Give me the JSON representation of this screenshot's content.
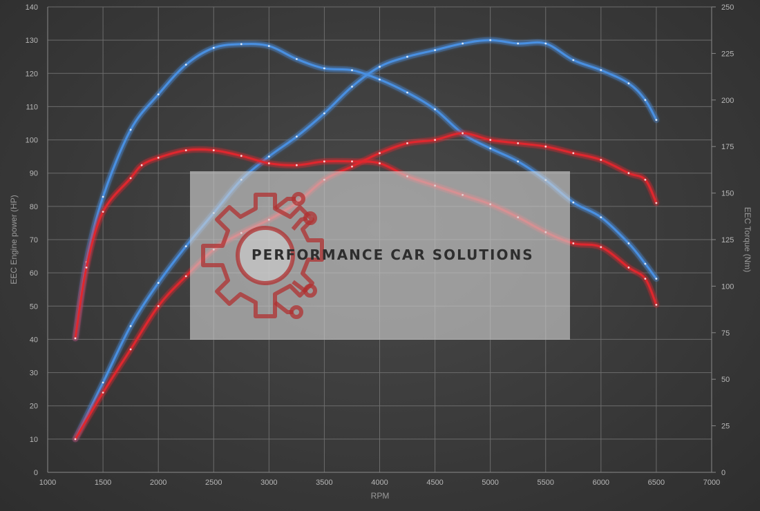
{
  "chart_data": {
    "type": "line",
    "xlabel": "RPM",
    "ylabel_left": "EEC Engine power (HP)",
    "ylabel_right": "EEC Torque (Nm)",
    "xlim": [
      1000,
      7000
    ],
    "ylim_left": [
      0,
      140
    ],
    "ylim_right": [
      0,
      250
    ],
    "x_ticks": [
      1000,
      1500,
      2000,
      2500,
      3000,
      3500,
      4000,
      4500,
      5000,
      5500,
      6000,
      6500,
      7000
    ],
    "y_left_ticks": [
      0,
      10,
      20,
      30,
      40,
      50,
      60,
      70,
      80,
      90,
      100,
      110,
      120,
      130,
      140
    ],
    "y_right_ticks": [
      0,
      25,
      50,
      75,
      100,
      125,
      150,
      175,
      200,
      225,
      250
    ],
    "grid": true,
    "colors": {
      "tuned": "#4a90e2",
      "stock": "#e0282d"
    },
    "series": [
      {
        "axis": "left",
        "color_key": "tuned",
        "x": [
          1250,
          1500,
          1750,
          2000,
          2250,
          2500,
          2750,
          3000,
          3250,
          3500,
          3750,
          4000,
          4250,
          4500,
          4750,
          5000,
          5250,
          5500,
          5750,
          6000,
          6250,
          6400,
          6500
        ],
        "y": [
          10,
          27,
          44,
          57,
          68,
          78,
          88,
          95,
          101,
          108,
          116,
          122,
          125,
          127,
          129,
          130,
          129,
          129,
          124,
          121,
          117,
          112,
          106
        ]
      },
      {
        "axis": "right",
        "color_key": "tuned",
        "x": [
          1250,
          1350,
          1500,
          1750,
          2000,
          2250,
          2500,
          2750,
          3000,
          3250,
          3500,
          3750,
          4000,
          4250,
          4500,
          4750,
          5000,
          5250,
          5500,
          5750,
          6000,
          6250,
          6400,
          6500
        ],
        "y": [
          72,
          113,
          148,
          184,
          203,
          219,
          228,
          230,
          229,
          222,
          217,
          216,
          211,
          204,
          195,
          182,
          174,
          167,
          157,
          145,
          137,
          123,
          112,
          104
        ]
      },
      {
        "axis": "left",
        "color_key": "stock",
        "x": [
          1250,
          1500,
          1750,
          2000,
          2250,
          2500,
          2750,
          3000,
          3250,
          3500,
          3750,
          4000,
          4250,
          4500,
          4750,
          5000,
          5250,
          5500,
          5750,
          6000,
          6250,
          6400,
          6500
        ],
        "y": [
          10,
          24,
          37,
          50,
          59,
          67,
          72,
          76,
          81,
          88,
          92,
          96,
          99,
          100,
          102,
          100,
          99,
          98,
          96,
          94,
          90,
          88,
          81
        ]
      },
      {
        "axis": "right",
        "color_key": "stock",
        "x": [
          1250,
          1350,
          1500,
          1750,
          1850,
          2000,
          2250,
          2500,
          2750,
          3000,
          3250,
          3500,
          3750,
          4000,
          4250,
          4500,
          4750,
          5000,
          5250,
          5500,
          5750,
          6000,
          6250,
          6400,
          6500
        ],
        "y": [
          72,
          110,
          140,
          158,
          165,
          169,
          173,
          173,
          170,
          166,
          165,
          167,
          167,
          166,
          159,
          154,
          149,
          144,
          137,
          129,
          123,
          121,
          110,
          104,
          90
        ]
      }
    ]
  },
  "watermark": {
    "text": "PERFORMANCE CAR SOLUTIONS",
    "logo_icon": "gear-circuit-icon",
    "logo_color": "#b03030"
  }
}
